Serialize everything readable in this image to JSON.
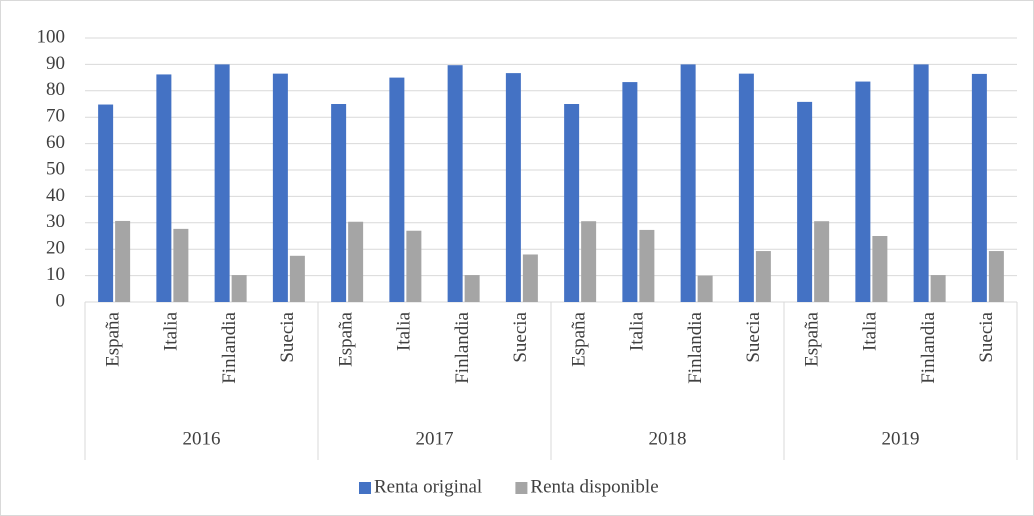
{
  "chart_data": {
    "type": "bar",
    "categories": [
      "España",
      "Italia",
      "Finlandia",
      "Suecia",
      "España",
      "Italia",
      "Finlandia",
      "Suecia",
      "España",
      "Italia",
      "Finlandia",
      "Suecia",
      "España",
      "Italia",
      "Finlandia",
      "Suecia"
    ],
    "groups": [
      "2016",
      "2017",
      "2018",
      "2019"
    ],
    "series": [
      {
        "name": "Renta original",
        "color": "#4472c4",
        "values": [
          74.8,
          86.2,
          90,
          86.5,
          75,
          85,
          89.7,
          86.7,
          75,
          83.3,
          90,
          86.5,
          75.8,
          83.5,
          90,
          86.4
        ]
      },
      {
        "name": "Renta disponible",
        "color": "#a5a5a5",
        "values": [
          30.7,
          27.7,
          10.2,
          17.5,
          30.4,
          27,
          10.2,
          18,
          30.6,
          27.3,
          10,
          19.3,
          30.6,
          25,
          10.2,
          19.3
        ]
      }
    ],
    "ylim": [
      0,
      100
    ],
    "yticks": [
      0,
      10,
      20,
      30,
      40,
      50,
      60,
      70,
      80,
      90,
      100
    ],
    "grid": true,
    "legend": "bottom"
  }
}
